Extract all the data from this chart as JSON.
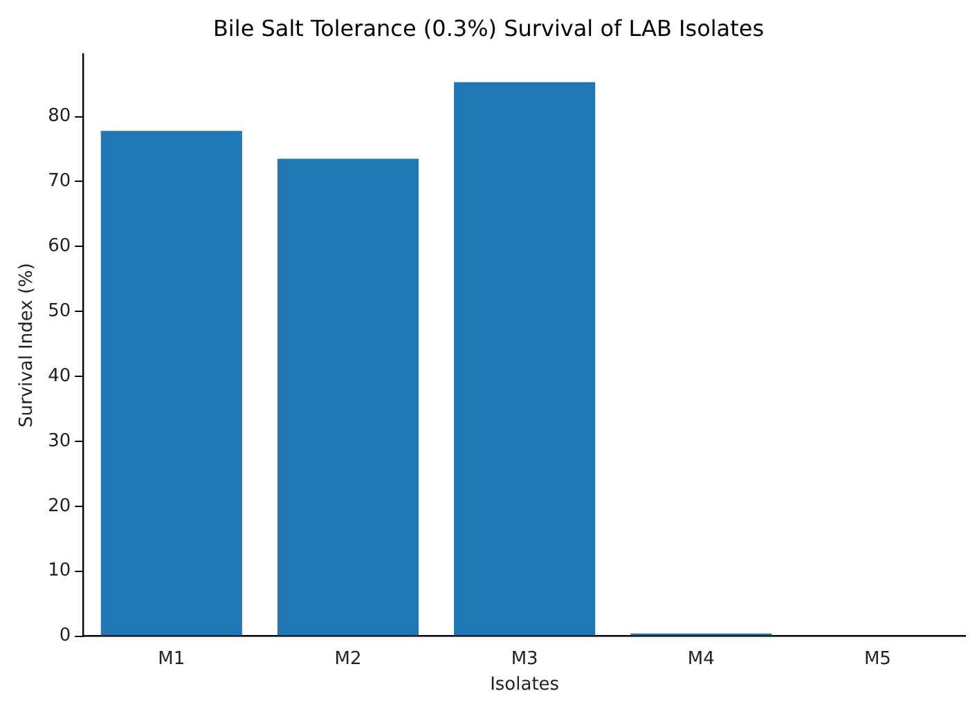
{
  "chart_data": {
    "type": "bar",
    "title": "Bile Salt Tolerance (0.3%) Survival of LAB Isolates",
    "xlabel": "Isolates",
    "ylabel": "Survival Index (%)",
    "categories": [
      "M1",
      "M2",
      "M3",
      "M4",
      "M5"
    ],
    "values": [
      77.8,
      73.5,
      85.3,
      0.4,
      0
    ],
    "color": "#1f77b4",
    "ylim": [
      0,
      89.6
    ],
    "yticks": [
      0,
      10,
      20,
      30,
      40,
      50,
      60,
      70,
      80
    ],
    "grid": false,
    "legend": false
  }
}
